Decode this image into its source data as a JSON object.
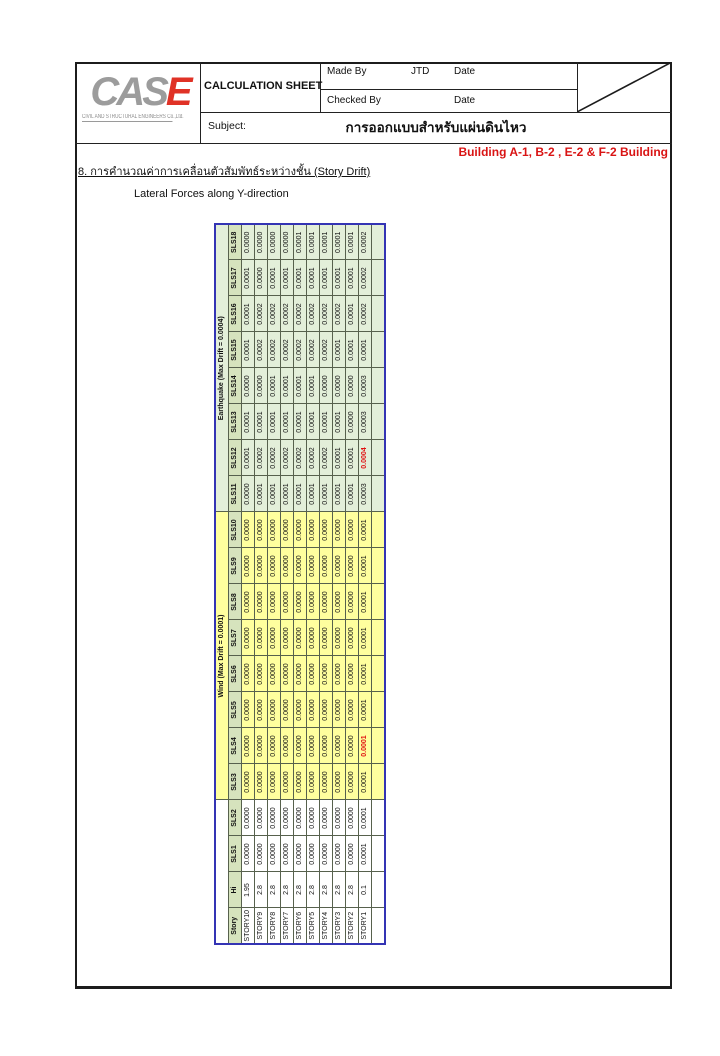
{
  "header": {
    "logo_gray": "CAS",
    "logo_red": "E",
    "logo_tagline": "CIVIL AND STRUCTURAL ENGINEERS Co.,Ltd.",
    "calculation_sheet": "CALCULATION SHEET",
    "made_by_label": "Made By",
    "made_by_value": "JTD",
    "date_label_1": "Date",
    "checked_by_label": "Checked By",
    "date_label_2": "Date",
    "subject_label": "Subject:",
    "subject_value": "การออกแบบสำหรับแผ่นดินไหว",
    "building_note": "Building A-1, B-2 , E-2 & F-2 Building"
  },
  "section": {
    "heading": "8. การคำนวณค่าการเคลื่อนตัวสัมพัทธ์ระหว่างชั้น (Story Drift)",
    "subheading": "Lateral Forces along Y-direction"
  },
  "colors": {
    "table_outer_border": "#3434b4",
    "grid_line": "#57614d",
    "header_green": "#d6e3bd",
    "earthquake_green": "#e3efd9",
    "wind_yellow": "#ffff9e",
    "highlight_red": "#e01010",
    "note_red": "#d91414",
    "logo_gray": "#9c9c9c",
    "logo_red": "#e03226"
  },
  "table": {
    "rotation_deg": -90,
    "groups": [
      {
        "label": "Wind (Max Drift = 0.0001)",
        "first_col": "SLS3",
        "last_col": "SLS10"
      },
      {
        "label": "Earthquake (Max Drift = 0.0004)",
        "first_col": "SLS11",
        "last_col": "SLS18"
      }
    ],
    "columns": [
      "Story",
      "Hi",
      "SLS1",
      "SLS2",
      "SLS3",
      "SLS4",
      "SLS5",
      "SLS6",
      "SLS7",
      "SLS8",
      "SLS9",
      "SLS10",
      "SLS11",
      "SLS12",
      "SLS13",
      "SLS14",
      "SLS15",
      "SLS16",
      "SLS17",
      "SLS18"
    ],
    "rows": [
      {
        "story": "STORY10",
        "hi": "1.95",
        "values": [
          "0.0000",
          "0.0000",
          "0.0000",
          "0.0000",
          "0.0000",
          "0.0000",
          "0.0000",
          "0.0000",
          "0.0000",
          "0.0000",
          "0.0000",
          "0.0001",
          "0.0001",
          "0.0000",
          "0.0001",
          "0.0001",
          "0.0001",
          "0.0000"
        ],
        "red": []
      },
      {
        "story": "STORY9",
        "hi": "2.8",
        "values": [
          "0.0000",
          "0.0000",
          "0.0000",
          "0.0000",
          "0.0000",
          "0.0000",
          "0.0000",
          "0.0000",
          "0.0000",
          "0.0000",
          "0.0001",
          "0.0002",
          "0.0001",
          "0.0000",
          "0.0002",
          "0.0002",
          "0.0000",
          "0.0000"
        ],
        "red": []
      },
      {
        "story": "STORY8",
        "hi": "2.8",
        "values": [
          "0.0000",
          "0.0000",
          "0.0000",
          "0.0000",
          "0.0000",
          "0.0000",
          "0.0000",
          "0.0000",
          "0.0000",
          "0.0000",
          "0.0001",
          "0.0002",
          "0.0001",
          "0.0001",
          "0.0002",
          "0.0002",
          "0.0001",
          "0.0000"
        ],
        "red": []
      },
      {
        "story": "STORY7",
        "hi": "2.8",
        "values": [
          "0.0000",
          "0.0000",
          "0.0000",
          "0.0000",
          "0.0000",
          "0.0000",
          "0.0000",
          "0.0000",
          "0.0000",
          "0.0000",
          "0.0001",
          "0.0002",
          "0.0001",
          "0.0001",
          "0.0002",
          "0.0002",
          "0.0001",
          "0.0000"
        ],
        "red": []
      },
      {
        "story": "STORY6",
        "hi": "2.8",
        "values": [
          "0.0000",
          "0.0000",
          "0.0000",
          "0.0000",
          "0.0000",
          "0.0000",
          "0.0000",
          "0.0000",
          "0.0000",
          "0.0000",
          "0.0001",
          "0.0002",
          "0.0001",
          "0.0001",
          "0.0002",
          "0.0002",
          "0.0001",
          "0.0001"
        ],
        "red": []
      },
      {
        "story": "STORY5",
        "hi": "2.8",
        "values": [
          "0.0000",
          "0.0000",
          "0.0000",
          "0.0000",
          "0.0000",
          "0.0000",
          "0.0000",
          "0.0000",
          "0.0000",
          "0.0000",
          "0.0001",
          "0.0002",
          "0.0001",
          "0.0001",
          "0.0002",
          "0.0002",
          "0.0001",
          "0.0001"
        ],
        "red": []
      },
      {
        "story": "STORY4",
        "hi": "2.8",
        "values": [
          "0.0000",
          "0.0000",
          "0.0000",
          "0.0000",
          "0.0000",
          "0.0000",
          "0.0000",
          "0.0000",
          "0.0000",
          "0.0000",
          "0.0001",
          "0.0002",
          "0.0001",
          "0.0000",
          "0.0002",
          "0.0002",
          "0.0001",
          "0.0001"
        ],
        "red": []
      },
      {
        "story": "STORY3",
        "hi": "2.8",
        "values": [
          "0.0000",
          "0.0000",
          "0.0000",
          "0.0000",
          "0.0000",
          "0.0000",
          "0.0000",
          "0.0000",
          "0.0000",
          "0.0000",
          "0.0001",
          "0.0001",
          "0.0001",
          "0.0000",
          "0.0001",
          "0.0002",
          "0.0001",
          "0.0001"
        ],
        "red": []
      },
      {
        "story": "STORY2",
        "hi": "2.8",
        "values": [
          "0.0000",
          "0.0000",
          "0.0000",
          "0.0000",
          "0.0000",
          "0.0000",
          "0.0000",
          "0.0000",
          "0.0000",
          "0.0000",
          "0.0001",
          "0.0001",
          "0.0000",
          "0.0000",
          "0.0001",
          "0.0001",
          "0.0001",
          "0.0001"
        ],
        "red": []
      },
      {
        "story": "STORY1",
        "hi": "0.1",
        "values": [
          "0.0001",
          "0.0001",
          "0.0001",
          "0.0001",
          "0.0001",
          "0.0001",
          "0.0001",
          "0.0001",
          "0.0001",
          "0.0001",
          "0.0003",
          "0.0004",
          "0.0003",
          "0.0003",
          "0.0001",
          "0.0002",
          "0.0002",
          "0.0002"
        ],
        "red": [
          "SLS4",
          "SLS12"
        ]
      }
    ]
  }
}
